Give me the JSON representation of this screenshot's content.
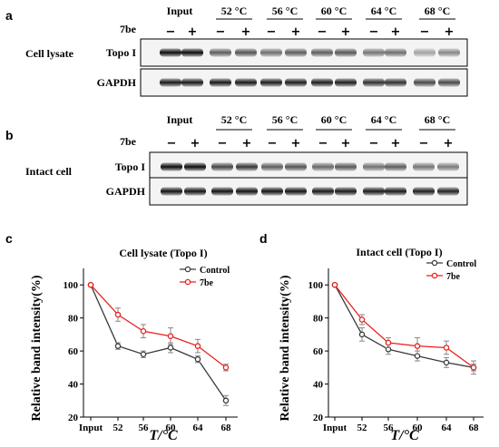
{
  "blots": [
    {
      "panel_letter": "a",
      "row_label": "Cell lysate",
      "header": [
        "Input",
        "52 °C",
        "56 °C",
        "60 °C",
        "64 °C",
        "68 °C"
      ],
      "treatment_label": "7be",
      "signs": [
        "−",
        "+"
      ],
      "band_labels": [
        "Topo I",
        "GAPDH"
      ],
      "topo_intensity": [
        0.95,
        0.95,
        0.62,
        0.66,
        0.55,
        0.62,
        0.62,
        0.64,
        0.52,
        0.55,
        0.33,
        0.45
      ],
      "gapdh_intensity": [
        0.9,
        0.9,
        0.9,
        0.9,
        0.88,
        0.88,
        0.88,
        0.88,
        0.8,
        0.8,
        0.7,
        0.7
      ]
    },
    {
      "panel_letter": "b",
      "row_label": "Intact cell",
      "header": [
        "Input",
        "52 °C",
        "56 °C",
        "60 °C",
        "64 °C",
        "68 °C"
      ],
      "treatment_label": "7be",
      "signs": [
        "−",
        "+"
      ],
      "band_labels": [
        "Topo I",
        "GAPDH"
      ],
      "topo_intensity": [
        0.95,
        0.95,
        0.72,
        0.78,
        0.62,
        0.66,
        0.58,
        0.64,
        0.54,
        0.62,
        0.52,
        0.5
      ],
      "gapdh_intensity": [
        0.92,
        0.92,
        0.92,
        0.92,
        0.92,
        0.92,
        0.9,
        0.9,
        0.9,
        0.9,
        0.88,
        0.86
      ]
    }
  ],
  "chart_data": [
    {
      "type": "line",
      "panel_letter": "c",
      "title": "Cell lysate (Topo I)",
      "xlabel": "T/°C",
      "ylabel": "Relative band intensity(%)",
      "x_categories": [
        "Input",
        "52",
        "56",
        "60",
        "64",
        "68"
      ],
      "ylim": [
        20,
        110
      ],
      "yticks": [
        20,
        40,
        60,
        80,
        100
      ],
      "legend_position": "top-right",
      "series": [
        {
          "name": "Control",
          "color": "#3a3a3a",
          "values": [
            100,
            63,
            58,
            62,
            55,
            30
          ],
          "errors": [
            0,
            2,
            2,
            3,
            2,
            3
          ]
        },
        {
          "name": "7be",
          "color": "#e8201e",
          "values": [
            100,
            82,
            72,
            69,
            63,
            50
          ],
          "errors": [
            0,
            4,
            4,
            5,
            4,
            2
          ]
        }
      ]
    },
    {
      "type": "line",
      "panel_letter": "d",
      "title": "Intact cell (Topo I)",
      "xlabel": "T/°C",
      "ylabel": "Relative band intensity(%)",
      "x_categories": [
        "Input",
        "52",
        "56",
        "60",
        "64",
        "68"
      ],
      "ylim": [
        20,
        110
      ],
      "yticks": [
        20,
        40,
        60,
        80,
        100
      ],
      "legend_position": "top-right",
      "series": [
        {
          "name": "Control",
          "color": "#3a3a3a",
          "values": [
            100,
            70,
            61,
            57,
            53,
            50
          ],
          "errors": [
            0,
            4,
            3,
            3,
            3,
            2
          ]
        },
        {
          "name": "7be",
          "color": "#e8201e",
          "values": [
            100,
            79,
            65,
            63,
            62,
            50
          ],
          "errors": [
            0,
            3,
            3,
            5,
            4,
            4
          ]
        }
      ]
    }
  ]
}
